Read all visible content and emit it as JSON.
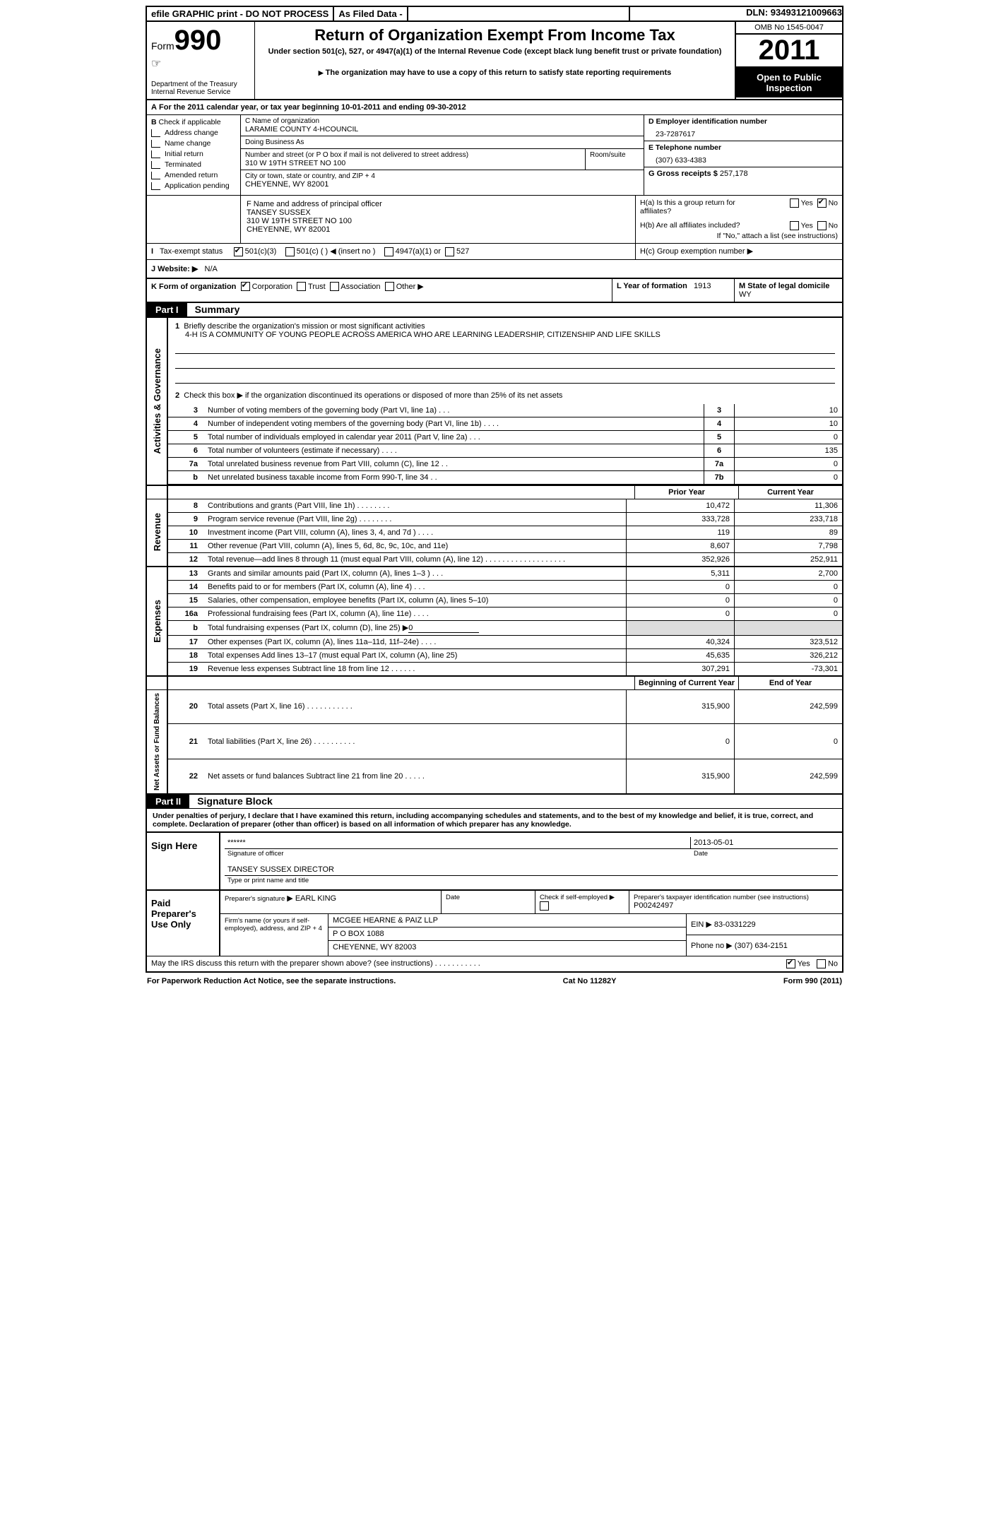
{
  "topbar": {
    "efile": "efile GRAPHIC print - DO NOT PROCESS",
    "asfiled": "As Filed Data -",
    "dln_label": "DLN:",
    "dln": "93493121009663"
  },
  "header": {
    "form_word": "Form",
    "form_num": "990",
    "dept1": "Department of the Treasury",
    "dept2": "Internal Revenue Service",
    "title": "Return of Organization Exempt From Income Tax",
    "subtitle": "Under section 501(c), 527, or 4947(a)(1) of the Internal Revenue Code (except black lung benefit trust or private foundation)",
    "note": "The organization may have to use a copy of this return to satisfy state reporting requirements",
    "omb": "OMB No 1545-0047",
    "year": "2011",
    "open": "Open to Public Inspection"
  },
  "secA": {
    "text": "For the 2011 calendar year, or tax year beginning 10-01-2011     and ending 09-30-2012",
    "prefix": "A"
  },
  "colB": {
    "label": "Check if applicable",
    "prefix": "B",
    "items": [
      "Address change",
      "Name change",
      "Initial return",
      "Terminated",
      "Amended return",
      "Application pending"
    ]
  },
  "colC": {
    "name_lbl": "C Name of organization",
    "name": "LARAMIE COUNTY 4-HCOUNCIL",
    "dba_lbl": "Doing Business As",
    "dba": "",
    "street_lbl": "Number and street (or P O  box if mail is not delivered to street address)",
    "room_lbl": "Room/suite",
    "street": "310 W 19TH STREET NO 100",
    "city_lbl": "City or town, state or country, and ZIP + 4",
    "city": "CHEYENNE, WY  82001",
    "f_lbl": "F    Name and address of principal officer",
    "f_name": "TANSEY SUSSEX",
    "f_street": "310 W 19TH STREET NO 100",
    "f_city": "CHEYENNE, WY  82001"
  },
  "colDG": {
    "d_lbl": "D Employer identification number",
    "d_val": "23-7287617",
    "e_lbl": "E Telephone number",
    "e_val": "(307) 633-4383",
    "g_lbl": "G Gross receipts $",
    "g_val": "257,178"
  },
  "colH": {
    "ha": "H(a)  Is this a group return for affiliates?",
    "hb": "H(b)  Are all affiliates included?",
    "hb_note": "If \"No,\" attach a list  (see instructions)",
    "hc": "H(c)   Group exemption number ▶",
    "yes": "Yes",
    "no": "No"
  },
  "taxexempt": {
    "i": "I",
    "lbl": "Tax-exempt status",
    "c3": "501(c)(3)",
    "c": "501(c) (   )",
    "insert": "(insert no )",
    "a1": "4947(a)(1) or",
    "s527": "527"
  },
  "j": {
    "label": "J   Website: ▶",
    "val": "N/A"
  },
  "k": {
    "label": "K Form of organization",
    "corp": "Corporation",
    "trust": "Trust",
    "assoc": "Association",
    "other": "Other ▶",
    "l_lbl": "L Year of formation",
    "l_val": "1913",
    "m_lbl": "M State of legal domicile",
    "m_val": "WY"
  },
  "part1": {
    "hdr": "Part I",
    "title": "Summary"
  },
  "mission": {
    "num": "1",
    "label": "Briefly describe the organization's mission or most significant activities",
    "text": "4-H IS A COMMUNITY OF YOUNG PEOPLE ACROSS AMERICA WHO ARE LEARNING LEADERSHIP, CITIZENSHIP AND LIFE SKILLS",
    "line2": {
      "num": "2",
      "text": "Check this box ▶     if the organization discontinued its operations or disposed of more than 25% of its net assets"
    }
  },
  "gov": {
    "rows": [
      {
        "n": "3",
        "t": "Number of voting members of the governing body (Part VI, line 1a)   .    .    .",
        "b": "3",
        "v": "10"
      },
      {
        "n": "4",
        "t": "Number of independent voting members of the governing body (Part VI, line 1b)   .    .    .    .",
        "b": "4",
        "v": "10"
      },
      {
        "n": "5",
        "t": "Total number of individuals employed in calendar year 2011 (Part V, line 2a)    .    .    .",
        "b": "5",
        "v": "0"
      },
      {
        "n": "6",
        "t": "Total number of volunteers (estimate if necessary)    .    .    .    .",
        "b": "6",
        "v": "135"
      },
      {
        "n": "7a",
        "t": "Total unrelated business revenue from Part VIII, column (C), line 12   .    .",
        "b": "7a",
        "v": "0"
      },
      {
        "n": "b",
        "t": "Net unrelated business taxable income from Form 990-T, line 34   .    .",
        "b": "7b",
        "v": "0"
      }
    ]
  },
  "hdr_prior": "Prior Year",
  "hdr_current": "Current Year",
  "revenue": {
    "label": "Revenue",
    "rows": [
      {
        "n": "8",
        "t": "Contributions and grants (Part VIII, line 1h)   .    .    .    .    .    .    .    .",
        "p": "10,472",
        "c": "11,306"
      },
      {
        "n": "9",
        "t": "Program service revenue (Part VIII, line 2g)    .    .    .    .    .    .    .    .",
        "p": "333,728",
        "c": "233,718"
      },
      {
        "n": "10",
        "t": "Investment income (Part VIII, column (A), lines 3, 4, and 7d )   .    .    .    .",
        "p": "119",
        "c": "89"
      },
      {
        "n": "11",
        "t": "Other revenue (Part VIII, column (A), lines 5, 6d, 8c, 9c, 10c, and 11e)",
        "p": "8,607",
        "c": "7,798"
      },
      {
        "n": "12",
        "t": "Total revenue—add lines 8 through 11 (must equal Part VIII, column (A), line 12)   .    .    .    .    .    .    .    .    .    .    .    .    .    .    .    .    .    .    .",
        "p": "352,926",
        "c": "252,911"
      }
    ]
  },
  "expenses": {
    "label": "Expenses",
    "rows": [
      {
        "n": "13",
        "t": "Grants and similar amounts paid (Part IX, column (A), lines 1–3 )   .    .    .",
        "p": "5,311",
        "c": "2,700"
      },
      {
        "n": "14",
        "t": "Benefits paid to or for members (Part IX, column (A), line 4)    .    .    .",
        "p": "0",
        "c": "0"
      },
      {
        "n": "15",
        "t": "Salaries, other compensation, employee benefits (Part IX, column (A), lines 5–10)",
        "p": "0",
        "c": "0"
      },
      {
        "n": "16a",
        "t": "Professional fundraising fees (Part IX, column (A), line 11e)   .    .    .    .",
        "p": "0",
        "c": "0"
      },
      {
        "n": "b",
        "t": "Total fundraising expenses (Part IX, column (D), line 25) ▶",
        "fund": "0",
        "p": "",
        "c": "",
        "grey": true
      },
      {
        "n": "17",
        "t": "Other expenses (Part IX, column (A), lines 11a–11d, 11f–24e)    .    .    .    .",
        "p": "40,324",
        "c": "323,512"
      },
      {
        "n": "18",
        "t": "Total expenses  Add lines 13–17 (must equal Part IX, column (A), line 25)",
        "p": "45,635",
        "c": "326,212"
      },
      {
        "n": "19",
        "t": "Revenue less expenses  Subtract line 18 from line 12   .    .    .    .    .    .",
        "p": "307,291",
        "c": "-73,301"
      }
    ]
  },
  "hdr_boy": "Beginning of Current Year",
  "hdr_eoy": "End of Year",
  "netassets": {
    "label": "Net Assets or Fund Balances",
    "rows": [
      {
        "n": "20",
        "t": "Total assets (Part X, line 16)   .    .    .    .    .    .    .    .    .    .    .",
        "p": "315,900",
        "c": "242,599"
      },
      {
        "n": "21",
        "t": "Total liabilities (Part X, line 26)   .    .    .    .    .    .    .    .    .    .",
        "p": "0",
        "c": "0"
      },
      {
        "n": "22",
        "t": "Net assets or fund balances  Subtract line 21 from line 20   .    .    .    .    .",
        "p": "315,900",
        "c": "242,599"
      }
    ]
  },
  "part2": {
    "hdr": "Part II",
    "title": "Signature Block"
  },
  "perjury": "Under penalties of perjury, I declare that I have examined this return, including accompanying schedules and statements, and to the best of my knowledge and belief, it is true, correct, and complete. Declaration of preparer (other than officer) is based on all information of which preparer has any knowledge.",
  "sign": {
    "here": "Sign Here",
    "sig_mask": "******",
    "sig_lbl": "Signature of officer",
    "date": "2013-05-01",
    "date_lbl": "Date",
    "name": "TANSEY SUSSEX DIRECTOR",
    "name_lbl": "Type or print name and title"
  },
  "paid": {
    "lbl": "Paid Preparer's Use Only",
    "prep_sig_lbl": "Preparer's signature",
    "prep_name": "EARL KING",
    "date_lbl": "Date",
    "check_lbl": "Check if self-employed ▶",
    "ptin_lbl": "Preparer's taxpayer identification number (see instructions)",
    "ptin": "P00242497",
    "firm_lbl": "Firm's name (or yours if self-employed), address, and ZIP + 4",
    "firm": "MCGEE HEARNE & PAIZ LLP",
    "firm_addr1": "P O BOX 1088",
    "firm_addr2": "CHEYENNE, WY  82003",
    "ein_lbl": "EIN ▶",
    "ein": "83-0331229",
    "phone_lbl": "Phone no  ▶",
    "phone": "(307) 634-2151"
  },
  "irs_discuss": "May the IRS discuss this return with the preparer shown above? (see instructions)   .    .    .    .    .    .    .    .    .    .    .",
  "yes": "Yes",
  "no": "No",
  "footer": {
    "left": "For Paperwork Reduction Act Notice, see the separate instructions.",
    "mid": "Cat No 11282Y",
    "right": "Form 990 (2011)"
  },
  "vert": {
    "ag": "Activities & Governance",
    "rev": "Revenue",
    "exp": "Expenses",
    "na": "Net Assets or Fund Balances"
  }
}
